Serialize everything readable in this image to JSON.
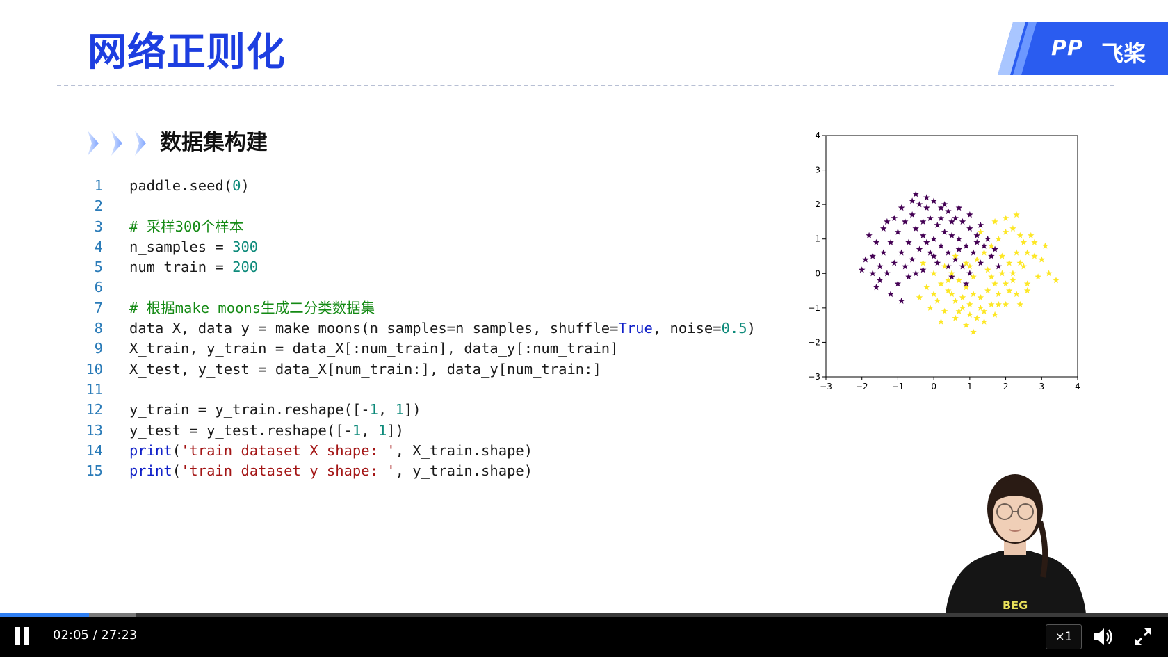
{
  "slide": {
    "title": "网络正则化",
    "logo": {
      "mark": "PP",
      "text": "飞桨"
    },
    "section_heading": "数据集构建",
    "code_lines": [
      {
        "n": "1",
        "tokens": [
          {
            "t": "paddle.seed(",
            "k": "plain"
          },
          {
            "t": "0",
            "k": "num"
          },
          {
            "t": ")",
            "k": "plain"
          }
        ]
      },
      {
        "n": "2",
        "tokens": []
      },
      {
        "n": "3",
        "tokens": [
          {
            "t": "# 采样300个样本",
            "k": "comment"
          }
        ]
      },
      {
        "n": "4",
        "tokens": [
          {
            "t": "n_samples = ",
            "k": "plain"
          },
          {
            "t": "300",
            "k": "num"
          }
        ]
      },
      {
        "n": "5",
        "tokens": [
          {
            "t": "num_train = ",
            "k": "plain"
          },
          {
            "t": "200",
            "k": "num"
          }
        ]
      },
      {
        "n": "6",
        "tokens": []
      },
      {
        "n": "7",
        "tokens": [
          {
            "t": "# 根据make_moons生成二分类数据集",
            "k": "comment"
          }
        ]
      },
      {
        "n": "8",
        "tokens": [
          {
            "t": "data_X, data_y = make_moons(n_samples=n_samples, shuffle=",
            "k": "plain"
          },
          {
            "t": "True",
            "k": "kw"
          },
          {
            "t": ", noise=",
            "k": "plain"
          },
          {
            "t": "0.5",
            "k": "num"
          },
          {
            "t": ")",
            "k": "plain"
          }
        ]
      },
      {
        "n": "9",
        "tokens": [
          {
            "t": "X_train, y_train = data_X[:num_train], data_y[:num_train]",
            "k": "plain"
          }
        ]
      },
      {
        "n": "10",
        "tokens": [
          {
            "t": "X_test, y_test = data_X[num_train:], data_y[num_train:]",
            "k": "plain"
          }
        ]
      },
      {
        "n": "11",
        "tokens": []
      },
      {
        "n": "12",
        "tokens": [
          {
            "t": "y_train = y_train.reshape([-",
            "k": "plain"
          },
          {
            "t": "1",
            "k": "num"
          },
          {
            "t": ", ",
            "k": "plain"
          },
          {
            "t": "1",
            "k": "num"
          },
          {
            "t": "])",
            "k": "plain"
          }
        ]
      },
      {
        "n": "13",
        "tokens": [
          {
            "t": "y_test = y_test.reshape([-",
            "k": "plain"
          },
          {
            "t": "1",
            "k": "num"
          },
          {
            "t": ", ",
            "k": "plain"
          },
          {
            "t": "1",
            "k": "num"
          },
          {
            "t": "])",
            "k": "plain"
          }
        ]
      },
      {
        "n": "14",
        "tokens": [
          {
            "t": "print",
            "k": "kw"
          },
          {
            "t": "(",
            "k": "plain"
          },
          {
            "t": "'train dataset X shape: '",
            "k": "str"
          },
          {
            "t": ", X_train.shape)",
            "k": "plain"
          }
        ]
      },
      {
        "n": "15",
        "tokens": [
          {
            "t": "print",
            "k": "kw"
          },
          {
            "t": "(",
            "k": "plain"
          },
          {
            "t": "'train dataset y shape: '",
            "k": "str"
          },
          {
            "t": ", y_train.shape)",
            "k": "plain"
          }
        ]
      }
    ]
  },
  "chart_data": {
    "type": "scatter",
    "marker": "star",
    "xlim": [
      -3,
      4
    ],
    "ylim": [
      -3,
      4
    ],
    "xticks": [
      "−3",
      "−2",
      "−1",
      "0",
      "1",
      "2",
      "3",
      "4"
    ],
    "yticks": [
      "4",
      "3",
      "2",
      "1",
      "0",
      "−1",
      "−2",
      "−3"
    ],
    "colors": {
      "class0": "#440154",
      "class1": "#fde725"
    },
    "series": [
      {
        "class": 0,
        "points": [
          [
            -1.8,
            1.1
          ],
          [
            -1.6,
            0.9
          ],
          [
            -1.7,
            0.5
          ],
          [
            -1.9,
            0.4
          ],
          [
            -1.5,
            0.2
          ],
          [
            -1.3,
            0.0
          ],
          [
            -1.1,
            0.3
          ],
          [
            -1.4,
            0.6
          ],
          [
            -1.2,
            0.9
          ],
          [
            -1.0,
            1.2
          ],
          [
            -0.8,
            1.5
          ],
          [
            -0.6,
            1.7
          ],
          [
            -0.4,
            2.0
          ],
          [
            -0.2,
            2.2
          ],
          [
            0.0,
            2.1
          ],
          [
            0.2,
            1.9
          ],
          [
            0.4,
            1.8
          ],
          [
            0.6,
            1.6
          ],
          [
            0.8,
            1.5
          ],
          [
            1.0,
            1.3
          ],
          [
            1.2,
            1.1
          ],
          [
            1.4,
            0.8
          ],
          [
            1.6,
            0.5
          ],
          [
            1.8,
            0.2
          ],
          [
            -0.9,
            0.6
          ],
          [
            -0.7,
            0.9
          ],
          [
            -0.5,
            1.3
          ],
          [
            -0.3,
            1.5
          ],
          [
            -0.1,
            1.6
          ],
          [
            0.1,
            1.4
          ],
          [
            0.3,
            1.2
          ],
          [
            0.5,
            1.1
          ],
          [
            0.7,
            1.0
          ],
          [
            0.9,
            0.8
          ],
          [
            1.1,
            0.6
          ],
          [
            1.3,
            0.3
          ],
          [
            -0.8,
            0.2
          ],
          [
            -0.6,
            0.4
          ],
          [
            -0.4,
            0.7
          ],
          [
            -0.2,
            0.9
          ],
          [
            0.0,
            1.0
          ],
          [
            0.2,
            0.8
          ],
          [
            0.4,
            0.6
          ],
          [
            0.6,
            0.4
          ],
          [
            0.8,
            0.2
          ],
          [
            1.0,
            0.0
          ],
          [
            -1.0,
            -0.3
          ],
          [
            -0.7,
            -0.1
          ],
          [
            -0.3,
            0.1
          ],
          [
            0.1,
            0.3
          ],
          [
            0.5,
            -0.1
          ],
          [
            0.9,
            -0.3
          ],
          [
            -1.2,
            -0.6
          ],
          [
            -0.9,
            -0.8
          ],
          [
            -1.5,
            -0.2
          ],
          [
            -1.7,
            0.0
          ],
          [
            -1.4,
            1.3
          ],
          [
            -0.9,
            1.9
          ],
          [
            -0.5,
            2.3
          ],
          [
            -0.2,
            1.9
          ],
          [
            0.3,
            2.0
          ],
          [
            0.7,
            1.9
          ],
          [
            1.0,
            1.7
          ],
          [
            1.3,
            1.4
          ],
          [
            -1.1,
            1.6
          ],
          [
            -1.3,
            1.5
          ],
          [
            -0.6,
            2.1
          ],
          [
            0.5,
            1.5
          ],
          [
            1.5,
            1.0
          ],
          [
            1.7,
            0.7
          ],
          [
            -1.6,
            -0.4
          ],
          [
            -2.0,
            0.1
          ],
          [
            0.0,
            0.5
          ],
          [
            -0.5,
            0.0
          ],
          [
            0.4,
            0.2
          ],
          [
            0.7,
            0.7
          ],
          [
            -0.3,
            1.1
          ],
          [
            0.2,
            1.6
          ],
          [
            -0.1,
            0.6
          ],
          [
            1.2,
            0.9
          ]
        ]
      },
      {
        "class": 1,
        "points": [
          [
            0.0,
            0.0
          ],
          [
            0.2,
            -0.3
          ],
          [
            0.4,
            -0.5
          ],
          [
            0.6,
            -0.8
          ],
          [
            0.8,
            -1.0
          ],
          [
            1.0,
            -1.2
          ],
          [
            1.2,
            -1.3
          ],
          [
            1.4,
            -1.1
          ],
          [
            1.6,
            -0.9
          ],
          [
            1.8,
            -0.6
          ],
          [
            2.0,
            -0.3
          ],
          [
            2.2,
            0.0
          ],
          [
            2.4,
            0.3
          ],
          [
            2.6,
            0.6
          ],
          [
            2.8,
            0.9
          ],
          [
            3.0,
            0.4
          ],
          [
            3.2,
            0.0
          ],
          [
            3.4,
            -0.2
          ],
          [
            0.3,
            0.2
          ],
          [
            0.5,
            0.0
          ],
          [
            0.7,
            -0.2
          ],
          [
            0.9,
            -0.4
          ],
          [
            1.1,
            -0.6
          ],
          [
            1.3,
            -0.7
          ],
          [
            1.5,
            -0.5
          ],
          [
            1.7,
            -0.3
          ],
          [
            1.9,
            0.0
          ],
          [
            2.1,
            0.3
          ],
          [
            2.3,
            0.6
          ],
          [
            2.5,
            0.9
          ],
          [
            2.7,
            1.1
          ],
          [
            1.0,
            0.2
          ],
          [
            1.2,
            0.4
          ],
          [
            1.4,
            0.6
          ],
          [
            1.6,
            0.8
          ],
          [
            1.8,
            1.0
          ],
          [
            2.0,
            1.2
          ],
          [
            2.2,
            1.3
          ],
          [
            2.4,
            1.1
          ],
          [
            0.1,
            -0.8
          ],
          [
            0.3,
            -1.1
          ],
          [
            0.6,
            -1.3
          ],
          [
            0.9,
            -1.5
          ],
          [
            1.1,
            -1.7
          ],
          [
            0.5,
            -0.6
          ],
          [
            0.8,
            -0.7
          ],
          [
            1.3,
            -1.0
          ],
          [
            1.7,
            -1.2
          ],
          [
            2.0,
            -0.9
          ],
          [
            2.3,
            -0.6
          ],
          [
            2.6,
            -0.3
          ],
          [
            2.9,
            -0.1
          ],
          [
            -0.2,
            -0.4
          ],
          [
            -0.4,
            -0.7
          ],
          [
            -0.1,
            -1.0
          ],
          [
            0.2,
            -1.4
          ],
          [
            1.5,
            0.1
          ],
          [
            1.9,
            0.5
          ],
          [
            2.1,
            -0.5
          ],
          [
            2.5,
            0.2
          ],
          [
            2.8,
            0.5
          ],
          [
            3.1,
            0.8
          ],
          [
            0.6,
            0.5
          ],
          [
            0.9,
            0.3
          ],
          [
            1.3,
            1.2
          ],
          [
            1.7,
            1.5
          ],
          [
            2.0,
            1.6
          ],
          [
            2.3,
            1.7
          ],
          [
            0.4,
            -0.2
          ],
          [
            1.1,
            -0.1
          ],
          [
            1.6,
            -0.1
          ],
          [
            2.2,
            -0.2
          ],
          [
            0.7,
            -1.1
          ],
          [
            1.4,
            -1.4
          ],
          [
            1.8,
            -0.9
          ],
          [
            2.4,
            -0.9
          ],
          [
            -0.3,
            0.3
          ],
          [
            0.0,
            -0.6
          ],
          [
            1.0,
            -0.9
          ],
          [
            2.6,
            -0.5
          ]
        ]
      }
    ]
  },
  "player": {
    "time": "02:05 / 27:23",
    "progress": 0.0761,
    "buffered": 0.1167,
    "speed": "×1",
    "icons": {
      "pause": "pause-icon",
      "volume": "volume-icon",
      "fullscreen": "fullscreen-icon"
    },
    "accent": "#2f7ff2"
  }
}
